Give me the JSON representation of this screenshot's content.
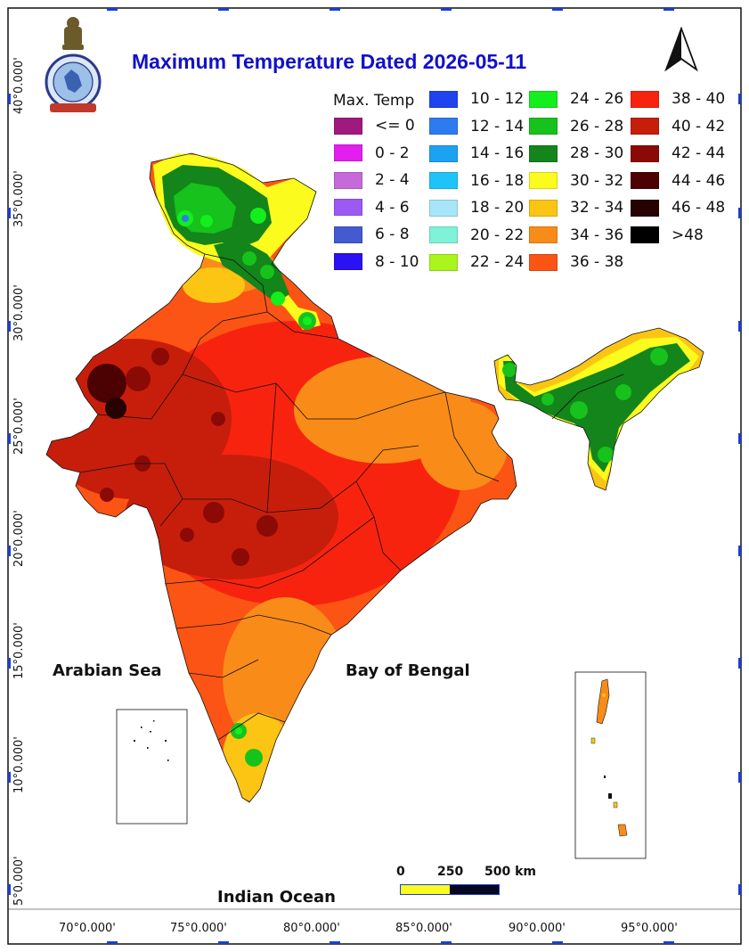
{
  "title": "Maximum Temperature Dated 2026-05-11",
  "legend": {
    "title": "Max. Temp",
    "columns": [
      [
        {
          "label": "<= 0",
          "color": "#a0197f"
        },
        {
          "label": "0 - 2",
          "color": "#e21fee"
        },
        {
          "label": "2 - 4",
          "color": "#c56ad8"
        },
        {
          "label": "4 - 6",
          "color": "#9c59f3"
        },
        {
          "label": "6 - 8",
          "color": "#435ad1"
        },
        {
          "label": "8 - 10",
          "color": "#2b12f2"
        }
      ],
      [
        {
          "label": "10 - 12",
          "color": "#1f43f0"
        },
        {
          "label": "12 - 14",
          "color": "#2e7bf0"
        },
        {
          "label": "14 - 16",
          "color": "#1ba2f0"
        },
        {
          "label": "16 - 18",
          "color": "#1ec4f8"
        },
        {
          "label": "18 - 20",
          "color": "#a6e6f8"
        },
        {
          "label": "20 - 22",
          "color": "#7ff2d8"
        },
        {
          "label": "22 - 24",
          "color": "#a9f51c"
        }
      ],
      [
        {
          "label": "24 - 26",
          "color": "#13ef1c"
        },
        {
          "label": "26 - 28",
          "color": "#16c21b"
        },
        {
          "label": "28 - 30",
          "color": "#13851b"
        },
        {
          "label": "30 - 32",
          "color": "#fbfb1e"
        },
        {
          "label": "32 - 34",
          "color": "#fcc513"
        },
        {
          "label": "34 - 36",
          "color": "#f98b19"
        },
        {
          "label": "36 - 38",
          "color": "#fb5414"
        }
      ],
      [
        {
          "label": "38 - 40",
          "color": "#f8230f"
        },
        {
          "label": "40 - 42",
          "color": "#c71e0b"
        },
        {
          "label": "42 - 44",
          "color": "#8b0a06"
        },
        {
          "label": "44 - 46",
          "color": "#4c0202"
        },
        {
          "label": "46 - 48",
          "color": "#260202"
        },
        {
          "label": ">48",
          "color": "#000000"
        }
      ]
    ]
  },
  "latitude_labels": [
    "40°0.000'",
    "35°0.000'",
    "30°0.000'",
    "25°0.000'",
    "20°0.000'",
    "15°0.000'",
    "10°0.000'",
    "5°0.000'"
  ],
  "longitude_labels": [
    "70°0.000'",
    "75°0.000'",
    "80°0.000'",
    "85°0.000'",
    "90°0.000'",
    "95°0.000'"
  ],
  "seas": {
    "arabian": "Arabian Sea",
    "bengal": "Bay of Bengal",
    "indian": "Indian Ocean"
  },
  "scale_bar": {
    "labels": [
      "0",
      "250",
      "500 km"
    ],
    "colors": [
      "#fbfb1e",
      "#06061e"
    ]
  },
  "north_arrow": "north-arrow-icon",
  "logo": "imd-emblem-icon"
}
